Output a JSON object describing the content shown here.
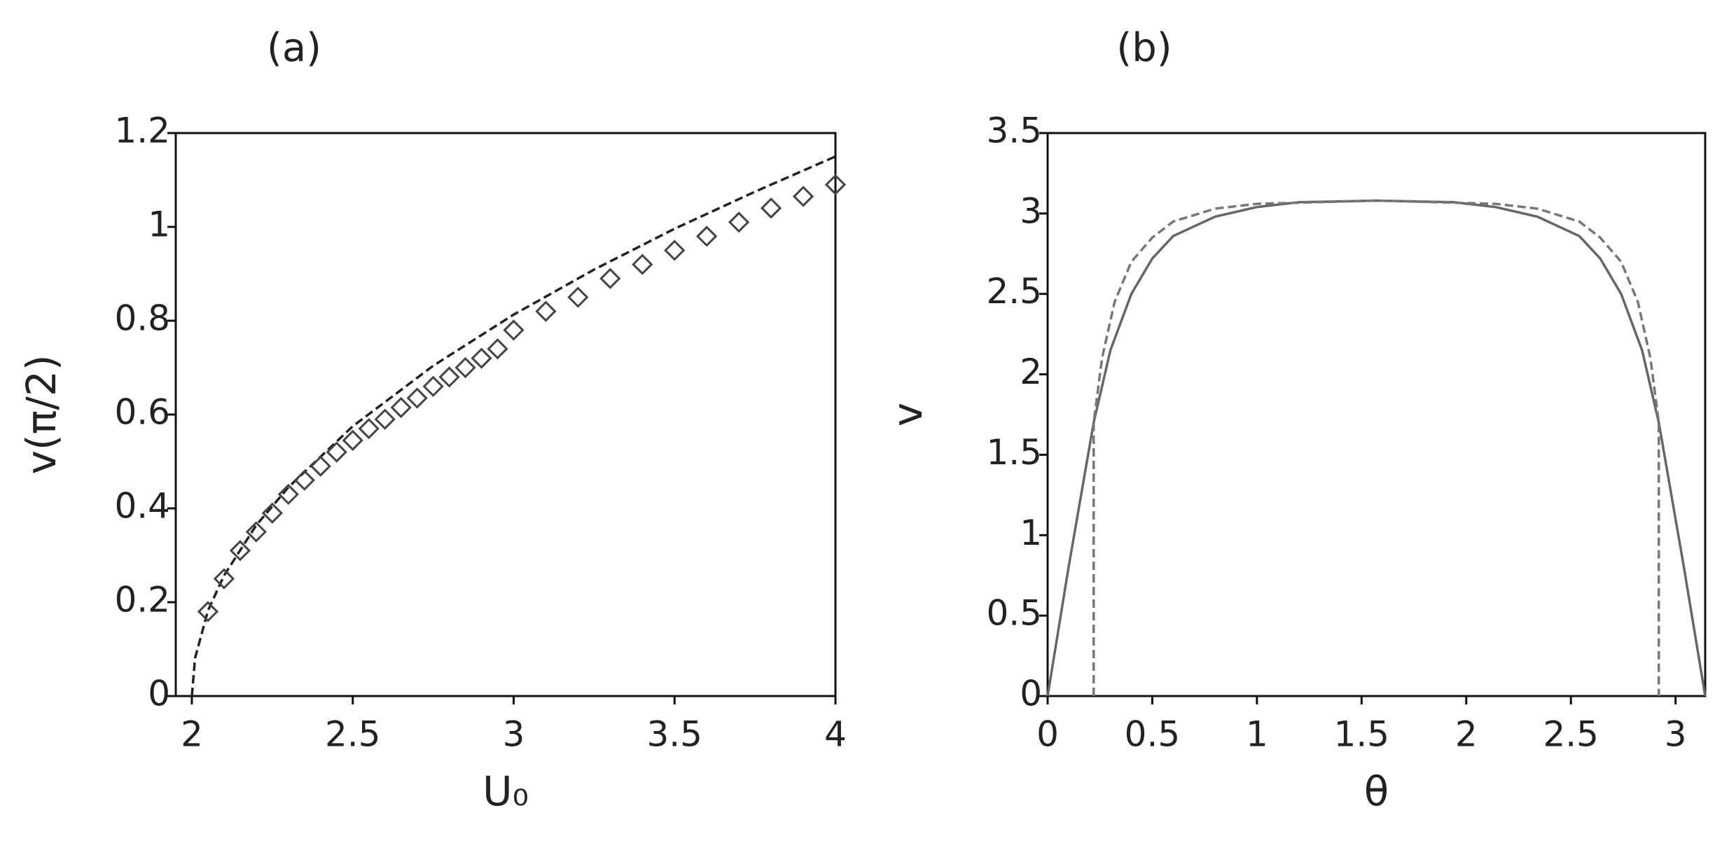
{
  "chart_data": [
    {
      "type": "line",
      "title": "(a)",
      "xlabel": "U₀",
      "ylabel": "v(π/2)",
      "xlim": [
        1.95,
        4
      ],
      "ylim": [
        0,
        1.2
      ],
      "xticks": [
        2,
        2.5,
        3,
        3.5,
        4
      ],
      "yticks": [
        0,
        0.2,
        0.4,
        0.6,
        0.8,
        1,
        1.2
      ],
      "series": [
        {
          "style": "dashed",
          "color": "#222222",
          "x": [
            2,
            2.01,
            2.05,
            2.1,
            2.2,
            2.3,
            2.5,
            2.75,
            3,
            3.25,
            3.5,
            3.75,
            4
          ],
          "values": [
            0,
            0.081,
            0.182,
            0.257,
            0.364,
            0.445,
            0.575,
            0.704,
            0.813,
            0.909,
            0.996,
            1.075,
            1.15
          ]
        },
        {
          "style": "diamond",
          "color": "#444444",
          "x": [
            2.05,
            2.1,
            2.15,
            2.2,
            2.25,
            2.3,
            2.35,
            2.4,
            2.45,
            2.5,
            2.55,
            2.6,
            2.65,
            2.7,
            2.75,
            2.8,
            2.85,
            2.9,
            2.95,
            3,
            3.1,
            3.2,
            3.3,
            3.4,
            3.5,
            3.6,
            3.7,
            3.8,
            3.9,
            4
          ],
          "values": [
            0.18,
            0.25,
            0.31,
            0.35,
            0.39,
            0.43,
            0.46,
            0.49,
            0.52,
            0.545,
            0.57,
            0.59,
            0.615,
            0.635,
            0.66,
            0.68,
            0.7,
            0.72,
            0.74,
            0.78,
            0.82,
            0.85,
            0.89,
            0.92,
            0.95,
            0.98,
            1.01,
            1.04,
            1.065,
            1.09
          ]
        }
      ]
    },
    {
      "type": "line",
      "title": "(b)",
      "xlabel": "θ",
      "ylabel": "v",
      "xlim": [
        0,
        3.1416
      ],
      "ylim": [
        0,
        3.5
      ],
      "xticks": [
        0,
        0.5,
        1,
        1.5,
        2,
        2.5,
        3
      ],
      "yticks": [
        0,
        0.5,
        1,
        1.5,
        2,
        2.5,
        3,
        3.5
      ],
      "series": [
        {
          "style": "solid",
          "color": "#666666",
          "x": [
            0,
            0.1,
            0.22,
            0.3,
            0.4,
            0.5,
            0.6,
            0.8,
            1.0,
            1.2,
            1.5708,
            1.94,
            2.14,
            2.34,
            2.54,
            2.64,
            2.74,
            2.84,
            2.92,
            3.04,
            3.1416
          ],
          "values": [
            0,
            0.8,
            1.7,
            2.15,
            2.5,
            2.72,
            2.86,
            2.98,
            3.04,
            3.07,
            3.08,
            3.07,
            3.04,
            2.98,
            2.86,
            2.72,
            2.5,
            2.15,
            1.7,
            0.8,
            0
          ]
        },
        {
          "style": "dashed",
          "color": "#777777",
          "x": [
            0.22,
            0.22,
            0.26,
            0.32,
            0.4,
            0.5,
            0.6,
            0.8,
            1.0,
            1.5708,
            2.14,
            2.34,
            2.54,
            2.64,
            2.74,
            2.82,
            2.88,
            2.92,
            2.92
          ],
          "values": [
            0,
            1.7,
            2.1,
            2.45,
            2.7,
            2.85,
            2.95,
            3.03,
            3.06,
            3.08,
            3.06,
            3.03,
            2.95,
            2.85,
            2.7,
            2.45,
            2.1,
            1.7,
            0
          ]
        }
      ]
    }
  ]
}
